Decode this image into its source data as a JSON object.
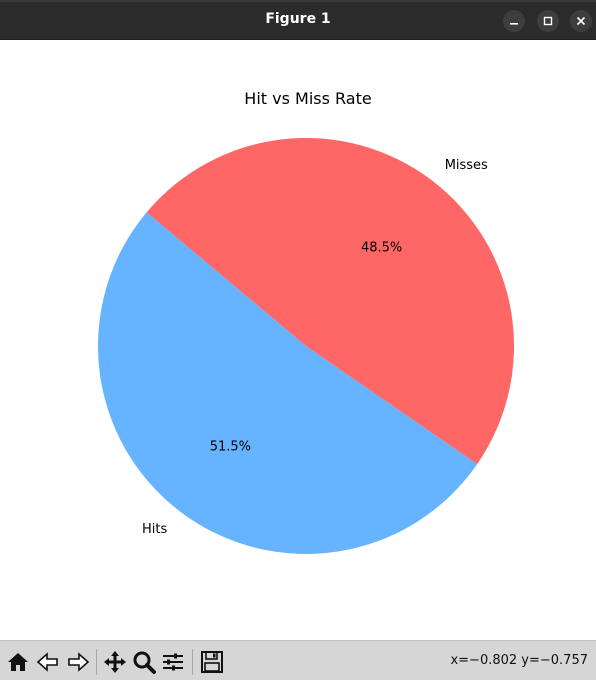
{
  "window": {
    "title": "Figure 1",
    "controls": [
      "minimize-icon",
      "maximize-icon",
      "close-icon"
    ]
  },
  "chart_data": {
    "type": "pie",
    "title": "Hit vs Miss Rate",
    "slices": [
      {
        "label": "Hits",
        "value": 51.5,
        "pct_label": "51.5%",
        "color": "#66b3ff"
      },
      {
        "label": "Misses",
        "value": 48.5,
        "pct_label": "48.5%",
        "color": "#ff6666"
      }
    ]
  },
  "toolbar": {
    "buttons": [
      "home-icon",
      "back-icon",
      "forward-icon",
      "pan-icon",
      "zoom-icon",
      "configure-subplots-icon",
      "save-icon"
    ],
    "coords": "x=−0.802 y=−0.757"
  }
}
